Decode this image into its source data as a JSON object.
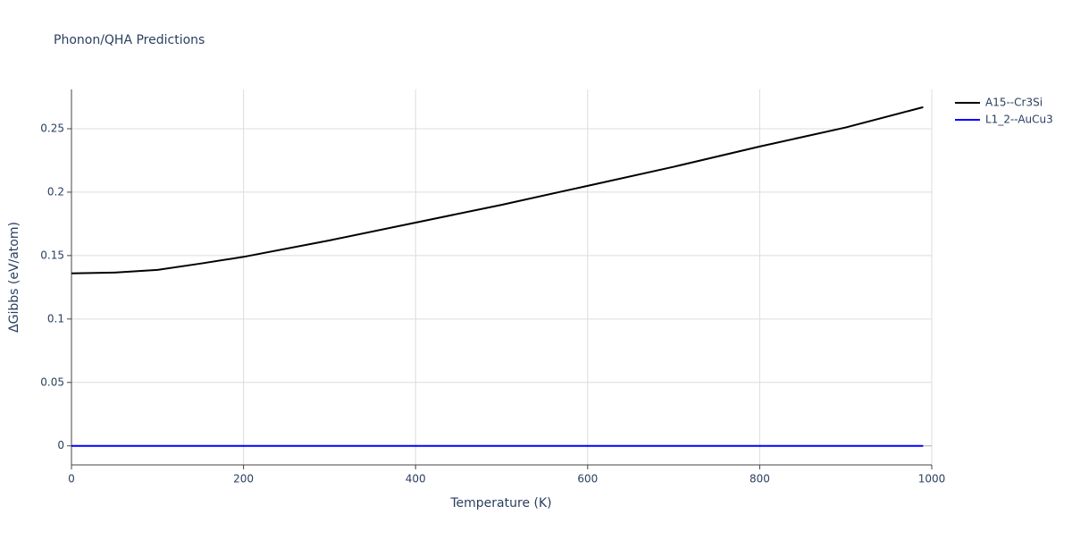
{
  "chart_data": {
    "type": "line",
    "title": "Phonon/QHA Predictions",
    "x_label": "Temperature (K)",
    "y_label": "ΔGibbs (eV/atom)",
    "x": [
      0,
      50,
      100,
      150,
      200,
      300,
      400,
      500,
      600,
      700,
      800,
      900,
      990
    ],
    "series": [
      {
        "name": "A15--Cr3Si",
        "color": "#000000",
        "values": [
          0.136,
          0.1366,
          0.1387,
          0.1437,
          0.149,
          0.162,
          0.176,
          0.19,
          0.205,
          0.22,
          0.236,
          0.251,
          0.267
        ]
      },
      {
        "name": "L1_2--AuCu3",
        "color": "#0000ff",
        "values": [
          0,
          0,
          0,
          0,
          0,
          0,
          0,
          0,
          0,
          0,
          0,
          0,
          0
        ]
      }
    ],
    "xlim": [
      0,
      1000
    ],
    "xticks": [
      0,
      200,
      400,
      600,
      800,
      1000
    ],
    "ylim": [
      -0.015,
      0.281
    ],
    "yticks": [
      0,
      0.05,
      0.1,
      0.15,
      0.2,
      0.25
    ],
    "grid": true,
    "legend": "right"
  }
}
